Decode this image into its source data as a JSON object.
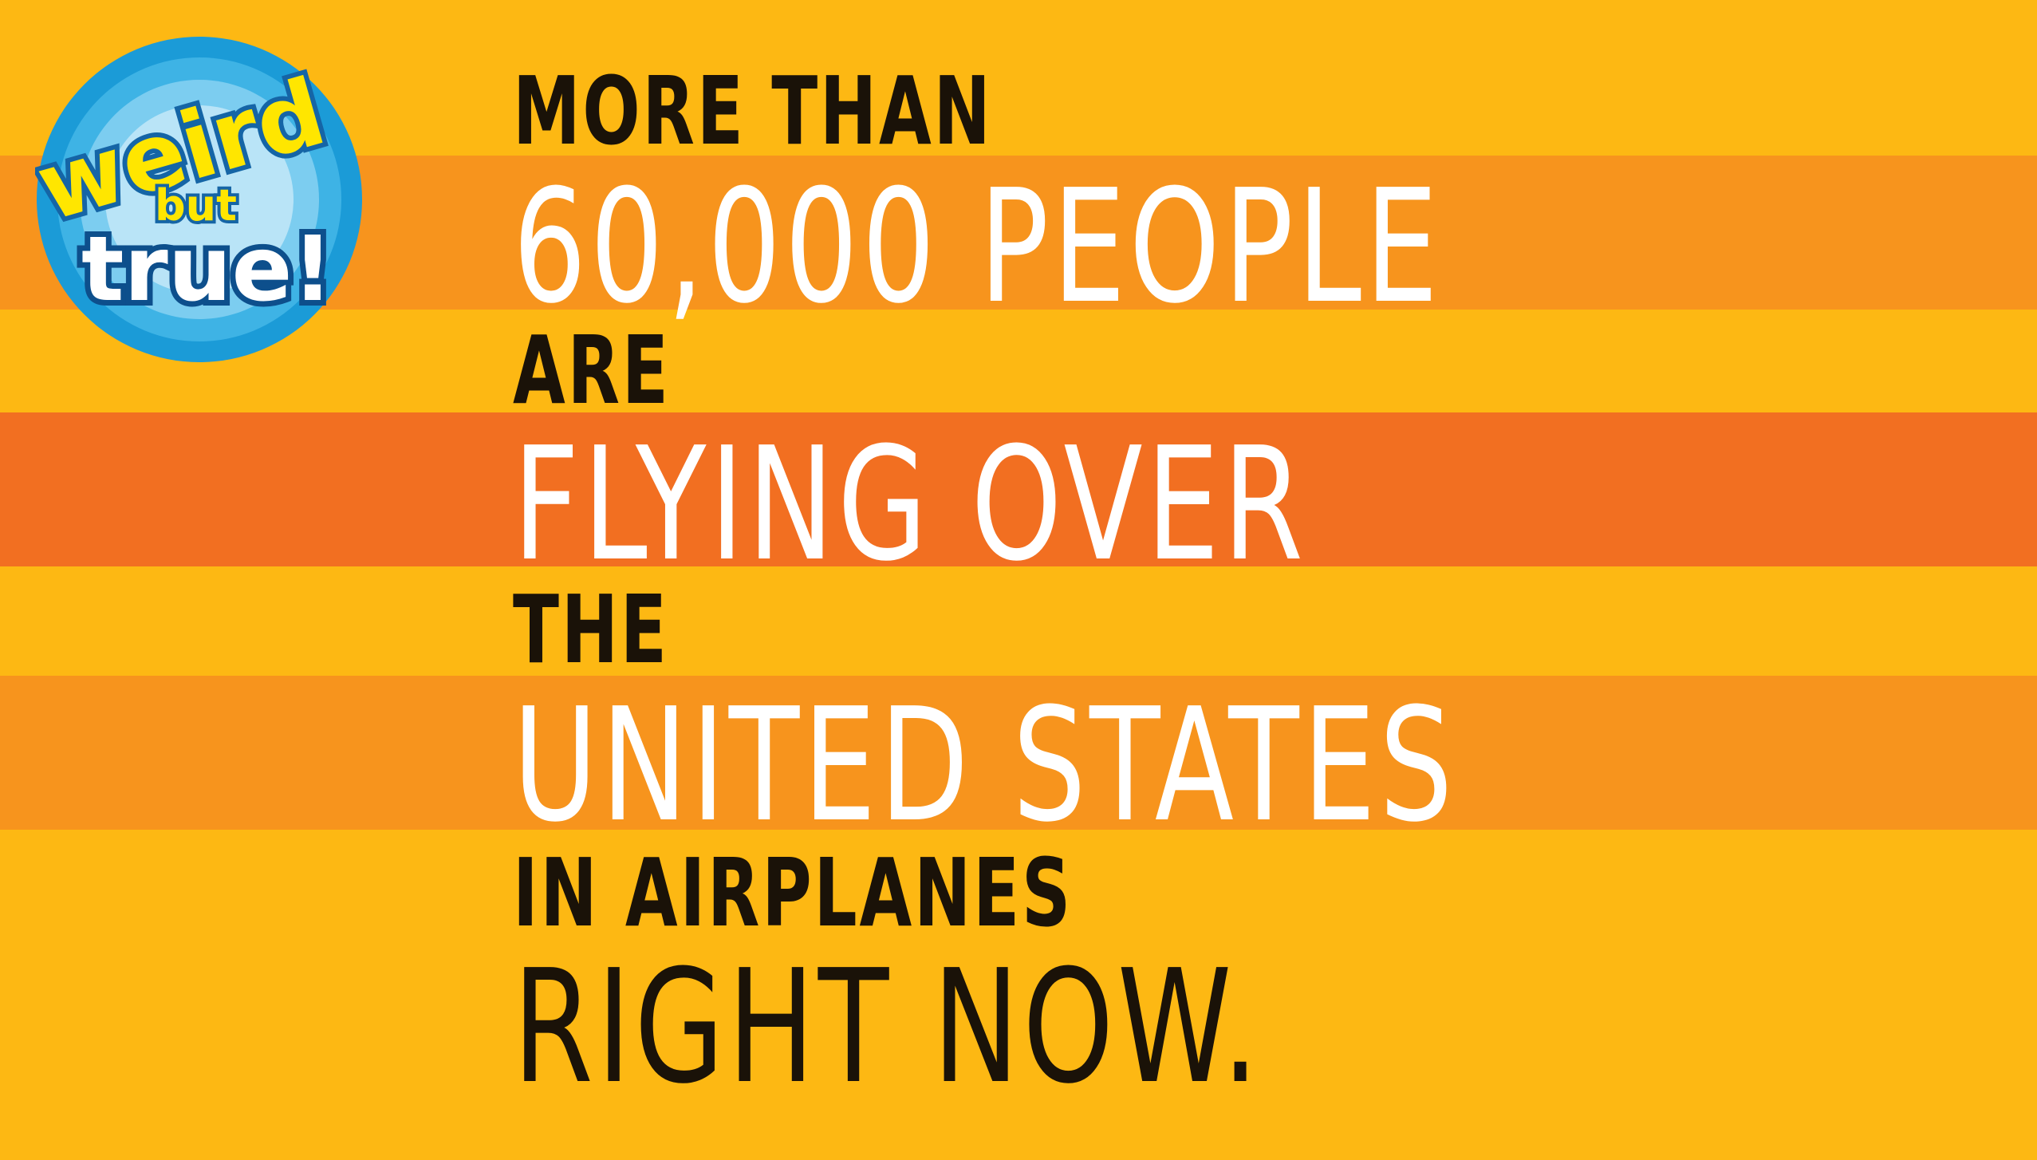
{
  "logo": {
    "word1": "weird",
    "word2": "but",
    "word3": "true!"
  },
  "headline": {
    "line1": "MORE THAN",
    "line2": "60,000 PEOPLE",
    "line3": "ARE",
    "line4": "FLYING OVER",
    "line5": "THE",
    "line6": "UNITED STATES",
    "line7": "IN AIRPLANES",
    "line8": "RIGHT NOW."
  },
  "colors": {
    "background": "#fdb813",
    "band_light": "#f7941d",
    "band_dark": "#f26f21",
    "text_dark": "#1a1208",
    "text_light": "#ffffff",
    "logo_blue": "#1b9bd7",
    "logo_yellow": "#ffe600"
  }
}
